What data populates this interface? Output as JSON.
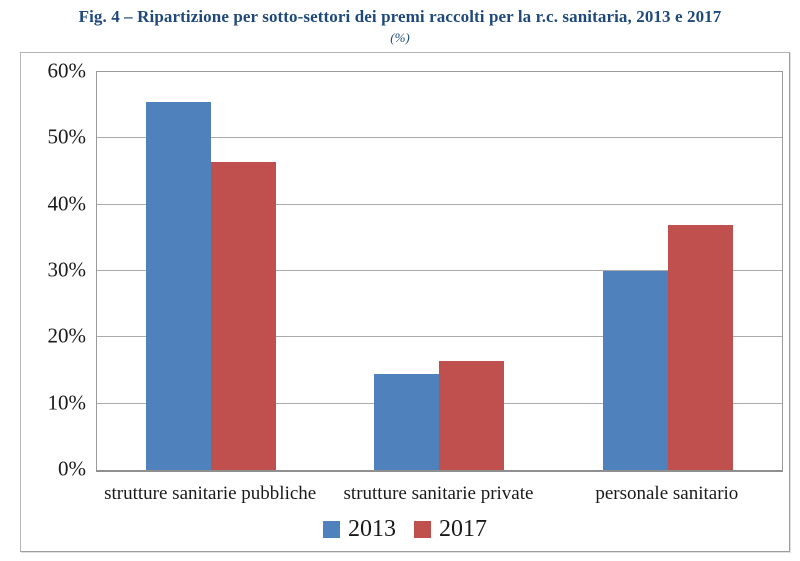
{
  "figure": {
    "title": "Fig. 4 – Ripartizione per sotto-settori dei premi raccolti per la r.c. sanitaria, 2013 e 2017",
    "subtitle": "(%)"
  },
  "colors": {
    "title_text": "#1F497D",
    "series_2013": "#4F81BD",
    "series_2017": "#C0504D",
    "gridline": "#ABABAB",
    "plot_border": "#9B9B9B",
    "frame_border": "#B5B5B5",
    "label_text": "#1A1A1A"
  },
  "chart_data": {
    "type": "bar",
    "title": "Fig. 4 – Ripartizione per sotto-settori dei premi raccolti per la r.c. sanitaria, 2013 e 2017",
    "subtitle": "(%)",
    "categories": [
      "strutture sanitarie pubbliche",
      "strutture sanitarie private",
      "personale sanitario"
    ],
    "series": [
      {
        "name": "2013",
        "color": "#4F81BD",
        "values": [
          55.5,
          14.5,
          30.0
        ]
      },
      {
        "name": "2017",
        "color": "#C0504D",
        "values": [
          46.5,
          16.5,
          37.0
        ]
      }
    ],
    "ylim": [
      0,
      60
    ],
    "yticks": [
      0,
      10,
      20,
      30,
      40,
      50,
      60
    ],
    "ytick_labels": [
      "0%",
      "10%",
      "20%",
      "30%",
      "40%",
      "50%",
      "60%"
    ],
    "xlabel": "",
    "ylabel": "",
    "grid": true,
    "legend_position": "bottom"
  }
}
